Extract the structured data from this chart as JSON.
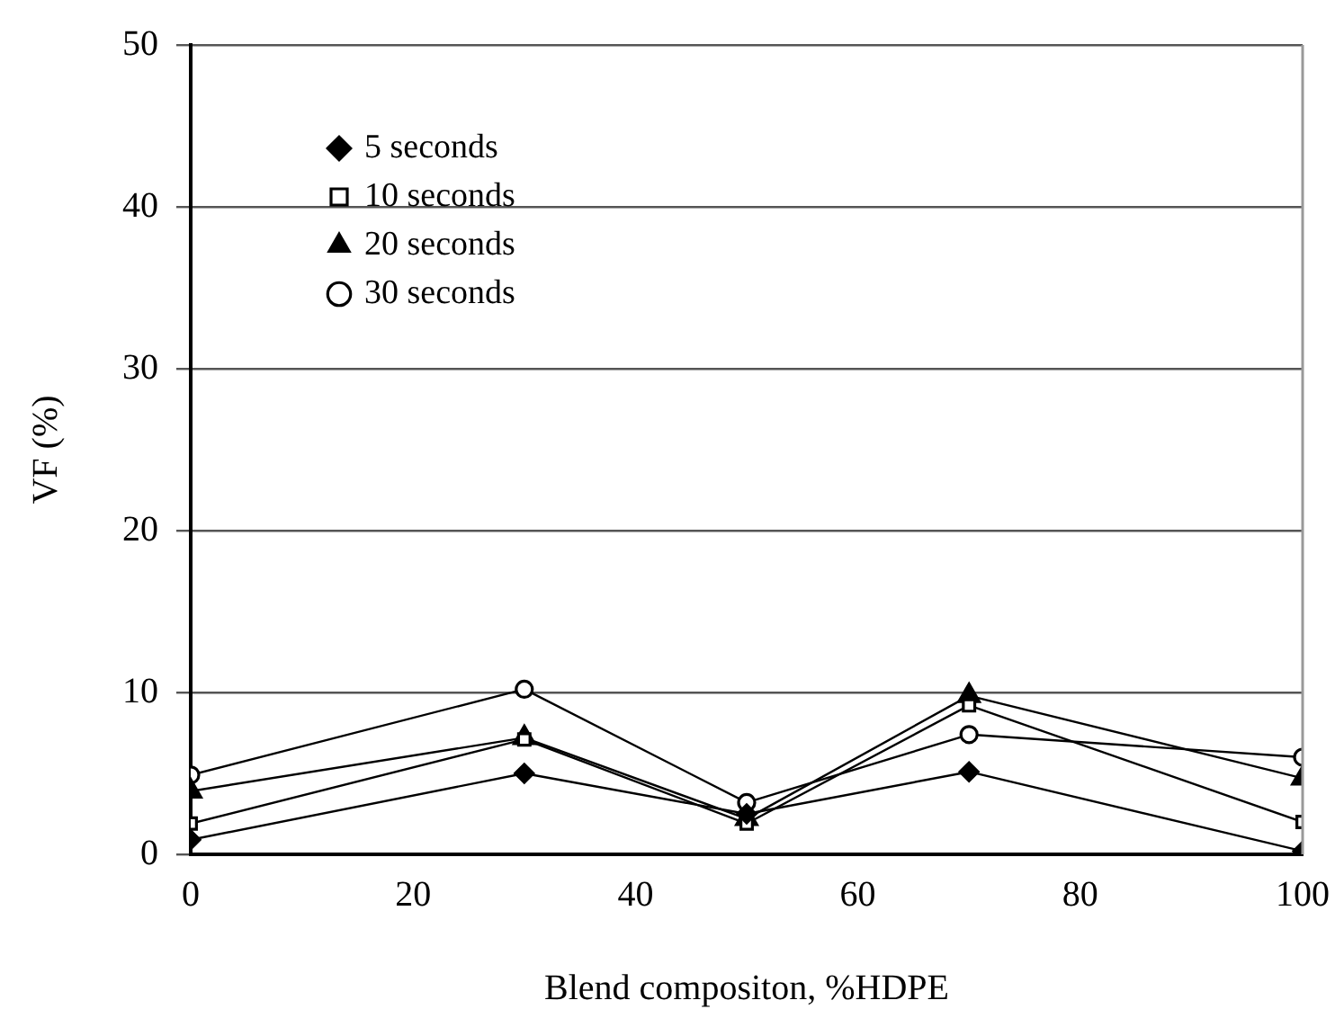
{
  "chart_data": {
    "type": "line",
    "xlabel": "Blend compositon, %HDPE",
    "ylabel": "VF (%)",
    "x": [
      0,
      30,
      50,
      70,
      100
    ],
    "series": [
      {
        "name": "5 seconds",
        "color": "#000000",
        "marker": "diamond",
        "values": [
          0.9,
          5.0,
          2.5,
          5.1,
          0.2
        ]
      },
      {
        "name": "10 seconds",
        "color": "#000000",
        "marker": "square",
        "values": [
          1.9,
          7.1,
          1.9,
          9.2,
          2.0
        ]
      },
      {
        "name": "20 seconds",
        "color": "#000000",
        "marker": "triangle",
        "values": [
          3.9,
          7.2,
          2.2,
          9.8,
          4.7
        ]
      },
      {
        "name": "30 seconds",
        "color": "#000000",
        "marker": "circle",
        "values": [
          4.9,
          10.2,
          3.2,
          7.4,
          6.0
        ]
      }
    ],
    "xlim": [
      0,
      100
    ],
    "xticks": [
      0,
      20,
      40,
      60,
      80,
      100
    ],
    "ylim": [
      0,
      50
    ],
    "yticks": [
      0,
      10,
      20,
      30,
      40,
      50
    ],
    "grid": "y",
    "legend": "top left",
    "line_style": "solid"
  }
}
